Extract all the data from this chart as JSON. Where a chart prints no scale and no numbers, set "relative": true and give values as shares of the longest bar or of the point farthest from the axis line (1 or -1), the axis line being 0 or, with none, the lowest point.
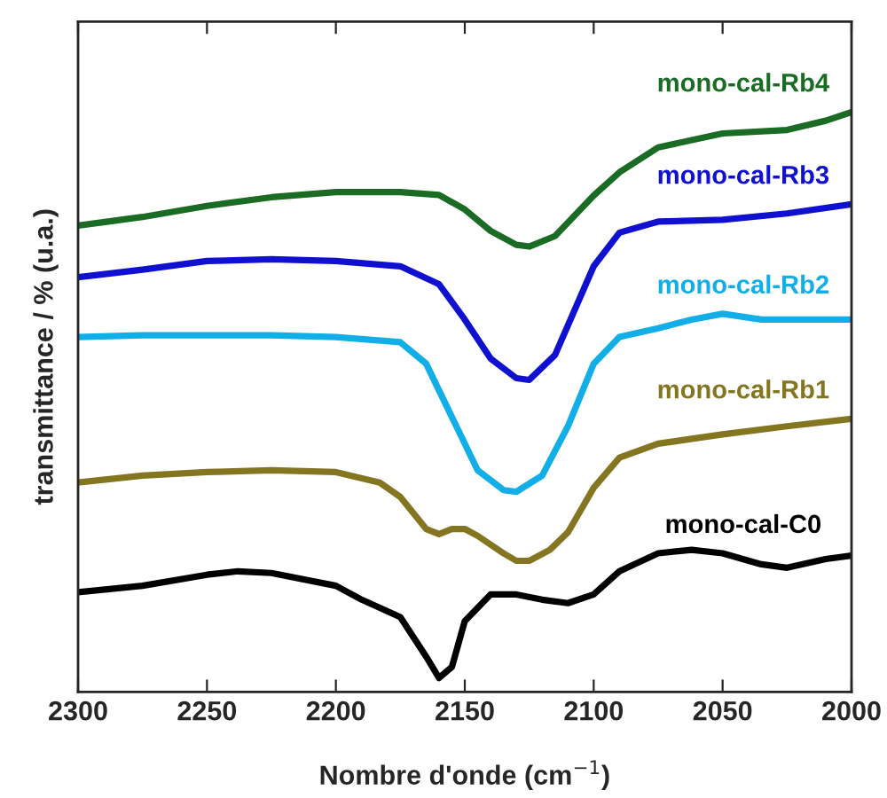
{
  "chart_data": {
    "type": "line",
    "relative": true,
    "xlabel": "Nombre d'onde (cm$^{−1}$)",
    "ylabel": "transmittance / % (u.a.)",
    "xlim": [
      2300,
      2000
    ],
    "xticks": [
      2300,
      2250,
      2200,
      2150,
      2100,
      2050,
      2000
    ],
    "grid": false,
    "legend": false,
    "marker": "none",
    "line_style": "solid",
    "tick_labels": "x",
    "series": [
      {
        "name": "mono-cal-Rb4",
        "color": "#1a6b23",
        "x": [
          2300,
          2275,
          2250,
          2225,
          2200,
          2175,
          2160,
          2150,
          2140,
          2130,
          2125,
          2115,
          2100,
          2090,
          2075,
          2050,
          2025,
          2010,
          2000
        ],
        "values": [
          0.804,
          0.819,
          0.838,
          0.853,
          0.862,
          0.862,
          0.857,
          0.832,
          0.795,
          0.771,
          0.768,
          0.786,
          0.856,
          0.896,
          0.939,
          0.963,
          0.969,
          0.985,
          1.0
        ]
      },
      {
        "name": "mono-cal-Rb3",
        "color": "#1010d0",
        "x": [
          2300,
          2275,
          2250,
          2225,
          2200,
          2175,
          2160,
          2150,
          2140,
          2130,
          2125,
          2115,
          2100,
          2090,
          2075,
          2050,
          2025,
          2000
        ],
        "values": [
          0.715,
          0.728,
          0.743,
          0.746,
          0.743,
          0.734,
          0.703,
          0.642,
          0.575,
          0.541,
          0.538,
          0.581,
          0.734,
          0.792,
          0.811,
          0.814,
          0.825,
          0.841
        ]
      },
      {
        "name": "mono-cal-Rb2",
        "color": "#12aee8",
        "x": [
          2300,
          2275,
          2250,
          2225,
          2200,
          2175,
          2165,
          2155,
          2145,
          2135,
          2130,
          2120,
          2110,
          2100,
          2090,
          2075,
          2062,
          2050,
          2035,
          2025,
          2000
        ],
        "values": [
          0.612,
          0.615,
          0.615,
          0.615,
          0.612,
          0.603,
          0.566,
          0.474,
          0.382,
          0.348,
          0.345,
          0.373,
          0.458,
          0.566,
          0.612,
          0.627,
          0.642,
          0.652,
          0.642,
          0.642,
          0.642
        ]
      },
      {
        "name": "mono-cal-Rb1",
        "color": "#847520",
        "x": [
          2300,
          2275,
          2250,
          2225,
          2200,
          2183,
          2175,
          2165,
          2160,
          2155,
          2150,
          2145,
          2135,
          2130,
          2125,
          2117,
          2110,
          2100,
          2090,
          2075,
          2050,
          2025,
          2000
        ],
        "values": [
          0.361,
          0.373,
          0.379,
          0.382,
          0.379,
          0.361,
          0.336,
          0.281,
          0.272,
          0.281,
          0.281,
          0.269,
          0.239,
          0.226,
          0.226,
          0.245,
          0.275,
          0.352,
          0.404,
          0.428,
          0.444,
          0.458,
          0.471
        ]
      },
      {
        "name": "mono-cal-C0",
        "color": "#000000",
        "x": [
          2300,
          2275,
          2250,
          2238,
          2225,
          2200,
          2190,
          2175,
          2165,
          2160,
          2155,
          2150,
          2140,
          2130,
          2120,
          2110,
          2100,
          2090,
          2075,
          2062,
          2050,
          2035,
          2025,
          2010,
          2000
        ],
        "values": [
          0.172,
          0.183,
          0.202,
          0.208,
          0.205,
          0.183,
          0.159,
          0.129,
          0.061,
          0.024,
          0.043,
          0.122,
          0.168,
          0.168,
          0.159,
          0.153,
          0.168,
          0.208,
          0.239,
          0.245,
          0.239,
          0.22,
          0.214,
          0.229,
          0.235
        ]
      }
    ]
  }
}
